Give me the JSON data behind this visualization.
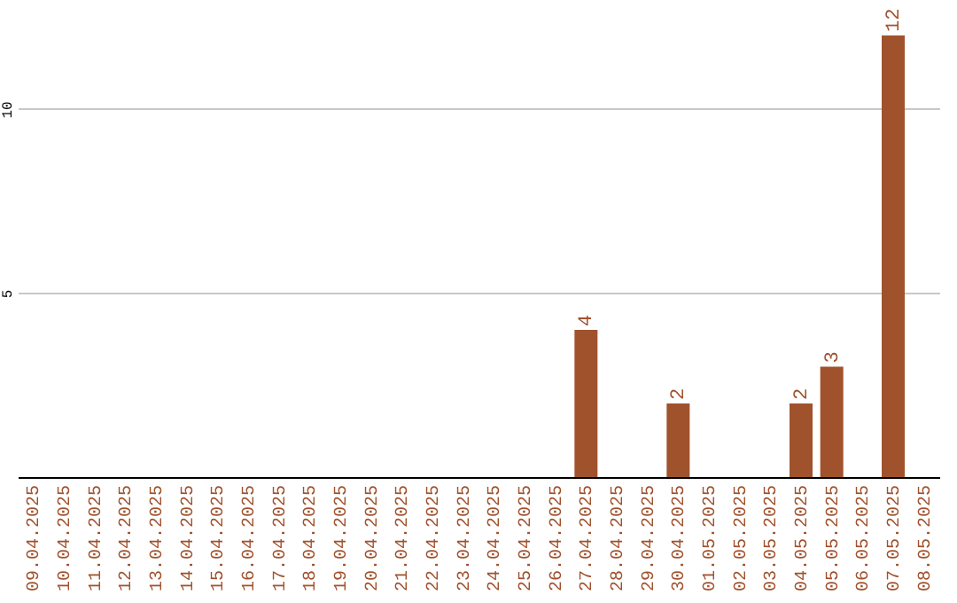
{
  "chart_data": {
    "type": "bar",
    "categories": [
      "09.04.2025",
      "10.04.2025",
      "11.04.2025",
      "12.04.2025",
      "13.04.2025",
      "14.04.2025",
      "15.04.2025",
      "16.04.2025",
      "17.04.2025",
      "18.04.2025",
      "19.04.2025",
      "20.04.2025",
      "21.04.2025",
      "22.04.2025",
      "23.04.2025",
      "24.04.2025",
      "25.04.2025",
      "26.04.2025",
      "27.04.2025",
      "28.04.2025",
      "29.04.2025",
      "30.04.2025",
      "01.05.2025",
      "02.05.2025",
      "03.05.2025",
      "04.05.2025",
      "05.05.2025",
      "06.05.2025",
      "07.05.2025",
      "08.05.2025"
    ],
    "values": [
      0,
      0,
      0,
      0,
      0,
      0,
      0,
      0,
      0,
      0,
      0,
      0,
      0,
      0,
      0,
      0,
      0,
      0,
      4,
      0,
      0,
      2,
      0,
      0,
      0,
      2,
      3,
      0,
      12,
      0
    ],
    "value_labels": [
      null,
      null,
      null,
      null,
      null,
      null,
      null,
      null,
      null,
      null,
      null,
      null,
      null,
      null,
      null,
      null,
      null,
      null,
      "4",
      null,
      null,
      "2",
      null,
      null,
      null,
      "2",
      "3",
      null,
      "12",
      null
    ],
    "color": "#a0522d",
    "ylim": [
      0,
      12
    ],
    "yticks": [
      5,
      10
    ],
    "grid": "y"
  }
}
